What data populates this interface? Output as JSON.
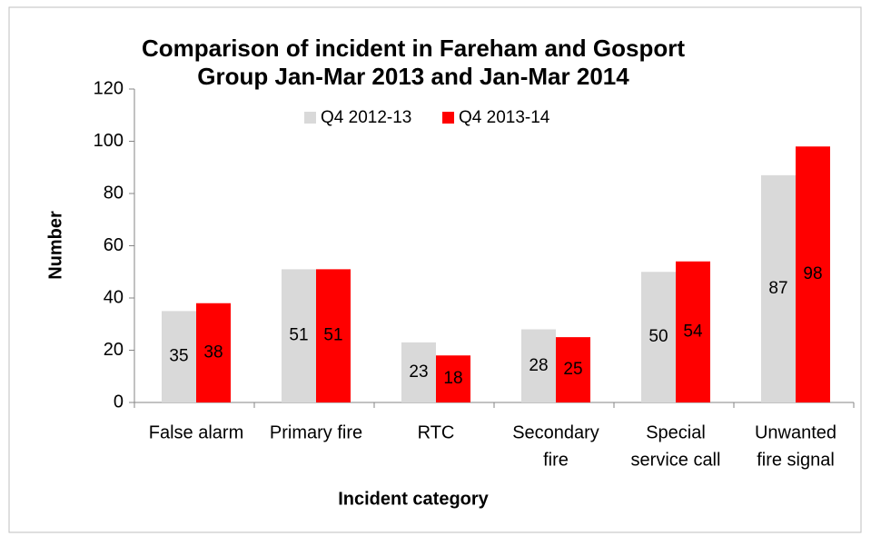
{
  "chart_data": {
    "type": "bar",
    "title": [
      "Comparison of incident in Fareham and Gosport",
      "Group Jan-Mar 2013 and Jan-Mar 2014"
    ],
    "xlabel": "Incident category",
    "ylabel": "Number",
    "categories": [
      [
        "False alarm"
      ],
      [
        "Primary fire"
      ],
      [
        "RTC"
      ],
      [
        "Secondary",
        "fire"
      ],
      [
        "Special",
        "service call"
      ],
      [
        "Unwanted",
        "fire signal"
      ]
    ],
    "series": [
      {
        "name": "Q4 2012-13",
        "color": "#d9d9d9",
        "values": [
          35,
          51,
          23,
          28,
          50,
          87
        ]
      },
      {
        "name": "Q4 2013-14",
        "color": "#ff0000",
        "values": [
          38,
          51,
          18,
          25,
          54,
          98
        ]
      }
    ],
    "ylim": [
      0,
      120
    ],
    "yticks": [
      0,
      20,
      40,
      60,
      80,
      100,
      120
    ],
    "legend": "top"
  }
}
